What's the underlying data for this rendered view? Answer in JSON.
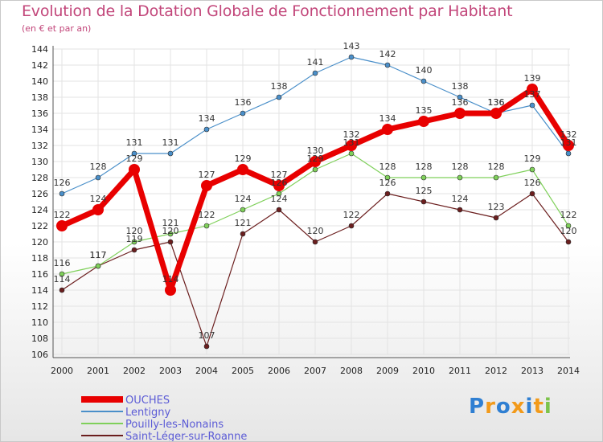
{
  "chart_data": {
    "type": "line",
    "title": "Evolution de la Dotation Globale de Fonctionnement par Habitant",
    "subtitle": "(en € et par an)",
    "categories": [
      "2000",
      "2001",
      "2002",
      "2003",
      "2004",
      "2005",
      "2006",
      "2007",
      "2008",
      "2009",
      "2010",
      "2011",
      "2012",
      "2013",
      "2014"
    ],
    "ylim": [
      106,
      144
    ],
    "yticks": [
      106,
      108,
      110,
      112,
      114,
      116,
      118,
      120,
      122,
      124,
      126,
      128,
      130,
      132,
      134,
      136,
      138,
      140,
      142,
      144
    ],
    "series": [
      {
        "name": "OUCHES",
        "color": "#e80000",
        "values": [
          122,
          124,
          129,
          114,
          127,
          129,
          127,
          130,
          132,
          134,
          135,
          136,
          136,
          139,
          132
        ]
      },
      {
        "name": "Lentigny",
        "color": "#4a8fc9",
        "values": [
          126,
          128,
          131,
          131,
          134,
          136,
          138,
          141,
          143,
          142,
          140,
          138,
          136,
          137,
          131
        ]
      },
      {
        "name": "Pouilly-les-Nonains",
        "color": "#7fd05a",
        "values": [
          116,
          117,
          120,
          121,
          122,
          124,
          126,
          129,
          131,
          128,
          128,
          128,
          128,
          129,
          122
        ]
      },
      {
        "name": "Saint-Léger-sur-Roanne",
        "color": "#6b1e1e",
        "values": [
          114,
          117,
          119,
          120,
          107,
          121,
          124,
          120,
          122,
          126,
          125,
          124,
          123,
          126,
          120
        ]
      }
    ]
  },
  "logo": {
    "letters": [
      "P",
      "r",
      "o",
      "x",
      "i",
      "t",
      "i"
    ],
    "colors": [
      "#2f7fd2",
      "#f29a1a",
      "#2f7fd2",
      "#f29a1a",
      "#2f7fd2",
      "#f29a1a",
      "#7cc34a"
    ]
  }
}
